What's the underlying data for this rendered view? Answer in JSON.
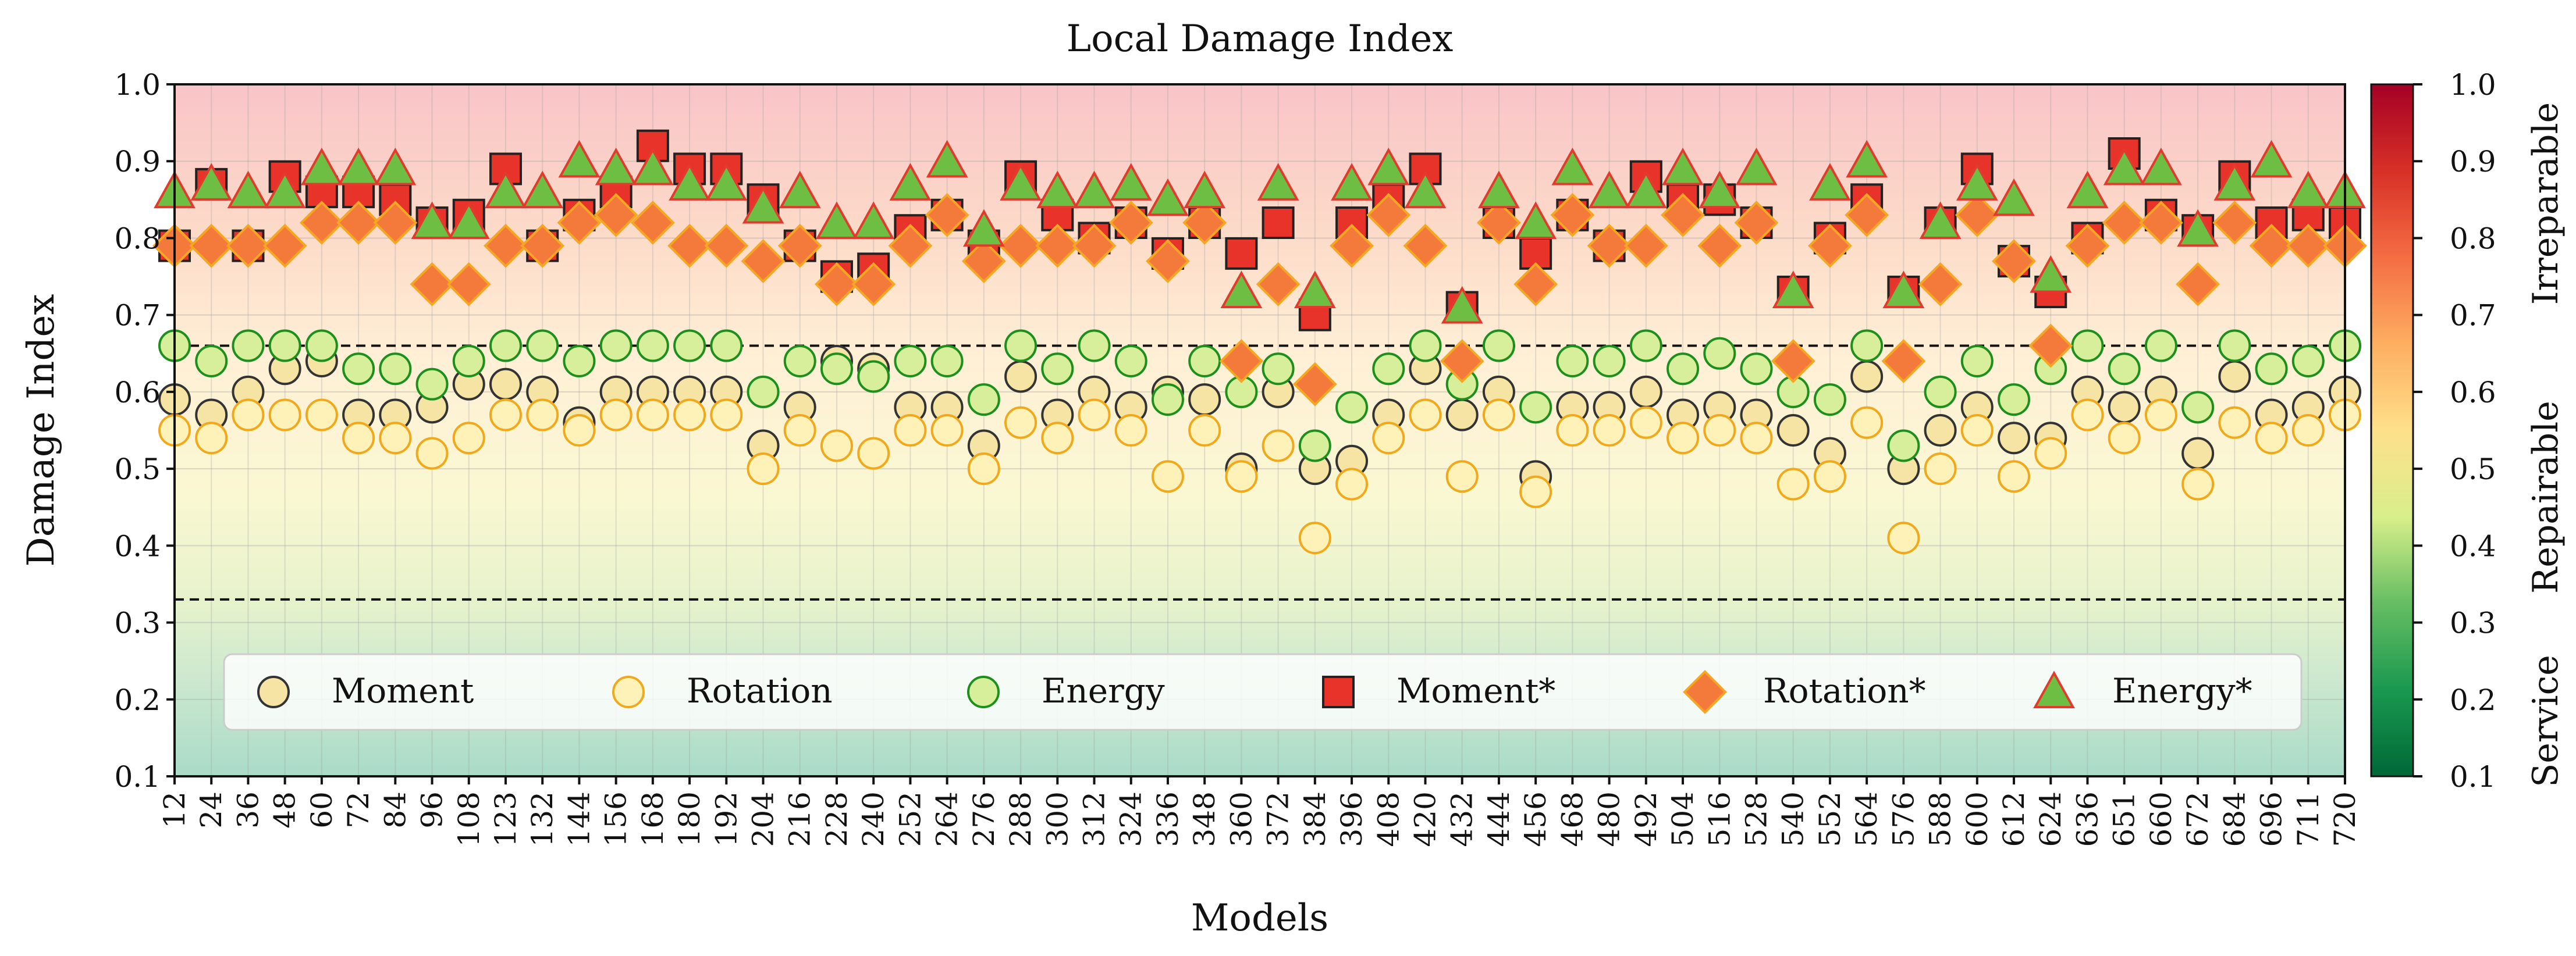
{
  "chart_data": {
    "type": "scatter",
    "title": "Local Damage Index",
    "xlabel": "Models",
    "ylabel": "Damage Index",
    "ylim": [
      0.1,
      1.0
    ],
    "yticks": [
      "0.1",
      "0.2",
      "0.3",
      "0.4",
      "0.5",
      "0.6",
      "0.7",
      "0.8",
      "0.9",
      "1.0"
    ],
    "thresholds": [
      0.33,
      0.66
    ],
    "grid": true,
    "legend_position": "lower-center",
    "categories": [
      "12",
      "24",
      "36",
      "48",
      "60",
      "72",
      "84",
      "96",
      "108",
      "123",
      "132",
      "144",
      "156",
      "168",
      "180",
      "192",
      "204",
      "216",
      "228",
      "240",
      "252",
      "264",
      "276",
      "288",
      "300",
      "312",
      "324",
      "336",
      "348",
      "360",
      "372",
      "384",
      "396",
      "408",
      "420",
      "432",
      "444",
      "456",
      "468",
      "480",
      "492",
      "504",
      "516",
      "528",
      "540",
      "552",
      "564",
      "576",
      "588",
      "600",
      "612",
      "624",
      "636",
      "651",
      "660",
      "672",
      "684",
      "696",
      "711",
      "720"
    ],
    "series": [
      {
        "name": "Moment",
        "marker": "circle",
        "fill": "#f6e4a4",
        "stroke": "#333333",
        "values": [
          0.59,
          0.57,
          0.6,
          0.63,
          0.64,
          0.57,
          0.57,
          0.58,
          0.61,
          0.61,
          0.6,
          0.56,
          0.6,
          0.6,
          0.6,
          0.6,
          0.53,
          0.58,
          0.64,
          0.63,
          0.58,
          0.58,
          0.53,
          0.62,
          0.57,
          0.6,
          0.58,
          0.6,
          0.59,
          0.5,
          0.6,
          0.5,
          0.51,
          0.57,
          0.63,
          0.57,
          0.6,
          0.49,
          0.58,
          0.58,
          0.6,
          0.57,
          0.58,
          0.57,
          0.55,
          0.52,
          0.62,
          0.5,
          0.55,
          0.58,
          0.54,
          0.54,
          0.6,
          0.58,
          0.6,
          0.52,
          0.62,
          0.57,
          0.58,
          0.6
        ]
      },
      {
        "name": "Rotation",
        "marker": "circle",
        "fill": "#fff2b8",
        "stroke": "#f0a81c",
        "values": [
          0.55,
          0.54,
          0.57,
          0.57,
          0.57,
          0.54,
          0.54,
          0.52,
          0.54,
          0.57,
          0.57,
          0.55,
          0.57,
          0.57,
          0.57,
          0.57,
          0.5,
          0.55,
          0.53,
          0.52,
          0.55,
          0.55,
          0.5,
          0.56,
          0.54,
          0.57,
          0.55,
          0.49,
          0.55,
          0.49,
          0.53,
          0.41,
          0.48,
          0.54,
          0.57,
          0.49,
          0.57,
          0.47,
          0.55,
          0.55,
          0.56,
          0.54,
          0.55,
          0.54,
          0.48,
          0.49,
          0.56,
          0.41,
          0.5,
          0.55,
          0.49,
          0.52,
          0.57,
          0.54,
          0.57,
          0.48,
          0.56,
          0.54,
          0.55,
          0.57
        ]
      },
      {
        "name": "Energy",
        "marker": "circle",
        "fill": "#d7ef9a",
        "stroke": "#1c8f1c",
        "values": [
          0.66,
          0.64,
          0.66,
          0.66,
          0.66,
          0.63,
          0.63,
          0.61,
          0.64,
          0.66,
          0.66,
          0.64,
          0.66,
          0.66,
          0.66,
          0.66,
          0.6,
          0.64,
          0.63,
          0.62,
          0.64,
          0.64,
          0.59,
          0.66,
          0.63,
          0.66,
          0.64,
          0.59,
          0.64,
          0.6,
          0.63,
          0.53,
          0.58,
          0.63,
          0.66,
          0.61,
          0.66,
          0.58,
          0.64,
          0.64,
          0.66,
          0.63,
          0.65,
          0.63,
          0.6,
          0.59,
          0.66,
          0.53,
          0.6,
          0.64,
          0.59,
          0.63,
          0.66,
          0.63,
          0.66,
          0.58,
          0.66,
          0.63,
          0.64,
          0.66
        ]
      },
      {
        "name": "Moment*",
        "marker": "square",
        "fill": "#e8332a",
        "stroke": "#222222",
        "values": [
          0.79,
          0.87,
          0.79,
          0.88,
          0.86,
          0.86,
          0.85,
          0.82,
          0.83,
          0.89,
          0.79,
          0.83,
          0.86,
          0.92,
          0.89,
          0.89,
          0.85,
          0.79,
          0.75,
          0.76,
          0.81,
          0.83,
          0.79,
          0.88,
          0.83,
          0.8,
          0.82,
          0.78,
          0.82,
          0.78,
          0.82,
          0.7,
          0.82,
          0.85,
          0.89,
          0.71,
          0.82,
          0.78,
          0.83,
          0.79,
          0.88,
          0.85,
          0.85,
          0.82,
          0.73,
          0.8,
          0.85,
          0.73,
          0.82,
          0.89,
          0.77,
          0.73,
          0.8,
          0.91,
          0.83,
          0.81,
          0.88,
          0.82,
          0.83,
          0.82
        ]
      },
      {
        "name": "Rotation*",
        "marker": "diamond",
        "fill": "#f47a3c",
        "stroke": "#f5a623",
        "values": [
          0.79,
          0.79,
          0.79,
          0.79,
          0.82,
          0.82,
          0.82,
          0.74,
          0.74,
          0.79,
          0.79,
          0.82,
          0.83,
          0.82,
          0.79,
          0.79,
          0.77,
          0.79,
          0.74,
          0.74,
          0.79,
          0.83,
          0.77,
          0.79,
          0.79,
          0.79,
          0.82,
          0.77,
          0.82,
          0.64,
          0.74,
          0.61,
          0.79,
          0.83,
          0.79,
          0.64,
          0.82,
          0.74,
          0.83,
          0.79,
          0.79,
          0.83,
          0.79,
          0.82,
          0.64,
          0.79,
          0.83,
          0.64,
          0.74,
          0.83,
          0.77,
          0.66,
          0.79,
          0.82,
          0.82,
          0.74,
          0.82,
          0.79,
          0.79,
          0.79
        ]
      },
      {
        "name": "Energy*",
        "marker": "triangle",
        "fill": "#6fbe44",
        "stroke": "#e23b2e",
        "values": [
          0.86,
          0.87,
          0.86,
          0.86,
          0.89,
          0.89,
          0.89,
          0.82,
          0.82,
          0.86,
          0.86,
          0.9,
          0.89,
          0.89,
          0.87,
          0.87,
          0.84,
          0.86,
          0.82,
          0.82,
          0.87,
          0.9,
          0.81,
          0.87,
          0.86,
          0.86,
          0.87,
          0.85,
          0.86,
          0.73,
          0.87,
          0.73,
          0.87,
          0.89,
          0.86,
          0.71,
          0.86,
          0.82,
          0.89,
          0.86,
          0.86,
          0.89,
          0.86,
          0.89,
          0.73,
          0.87,
          0.9,
          0.73,
          0.82,
          0.87,
          0.85,
          0.75,
          0.86,
          0.89,
          0.89,
          0.81,
          0.87,
          0.9,
          0.86,
          0.86
        ]
      }
    ],
    "colorbar": {
      "ticks": [
        "0.1",
        "0.2",
        "0.3",
        "0.4",
        "0.5",
        "0.6",
        "0.7",
        "0.8",
        "0.9",
        "1.0"
      ],
      "zone_labels": [
        "Service",
        "Repairable",
        "Irreparable"
      ],
      "colors": [
        "#006837",
        "#1a9850",
        "#66bd63",
        "#d9ef8b",
        "#fee08b",
        "#fdae61",
        "#f46d43",
        "#d73027",
        "#a50026"
      ]
    }
  }
}
